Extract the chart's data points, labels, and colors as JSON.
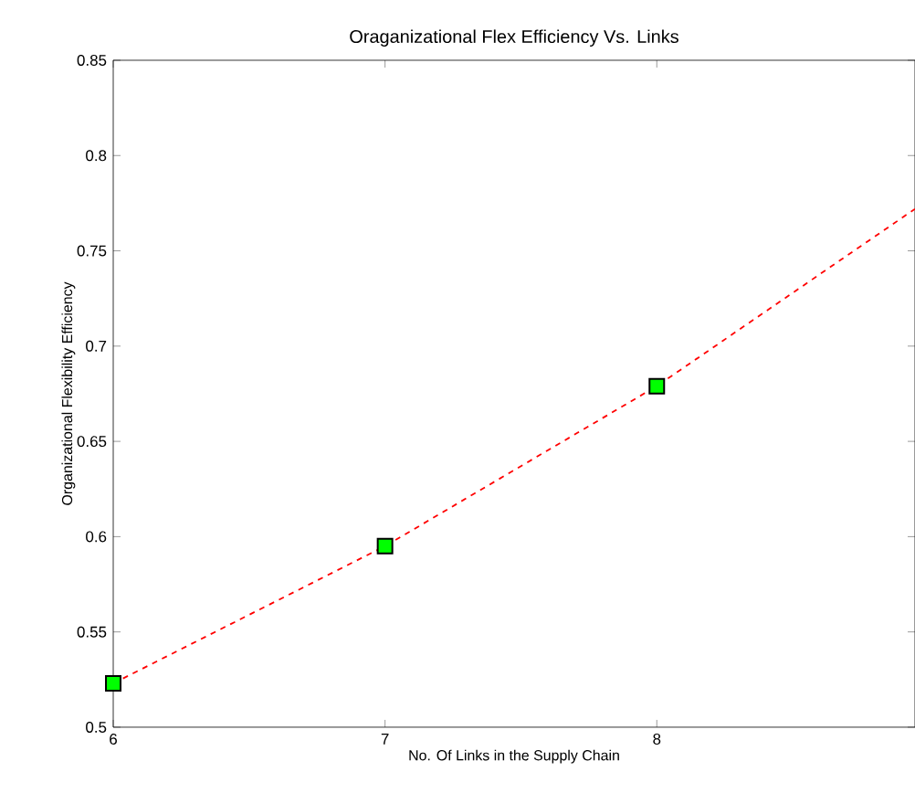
{
  "chart_data": {
    "type": "line",
    "title": "Oraganizational Flex Efficiency Vs. Links",
    "xlabel": "No. Of Links in the Supply Chain",
    "ylabel": "Organizational Flexibility Efficiency",
    "xlim": [
      6,
      8.95
    ],
    "ylim": [
      0.5,
      0.85
    ],
    "xticks": [
      6,
      7,
      8
    ],
    "yticks": [
      0.5,
      0.55,
      0.6,
      0.65,
      0.7,
      0.75,
      0.8,
      0.85
    ],
    "grid": false,
    "series": [
      {
        "x": [
          6,
          7,
          8,
          8.95
        ],
        "values": [
          0.523,
          0.595,
          0.679,
          0.772
        ],
        "color": "#ff0000",
        "line_style": "dashed",
        "marker": "none"
      },
      {
        "type": "scatter",
        "x": [
          6,
          7,
          8
        ],
        "values": [
          0.523,
          0.595,
          0.679
        ],
        "color": "#00ff00",
        "marker": "square"
      }
    ]
  }
}
